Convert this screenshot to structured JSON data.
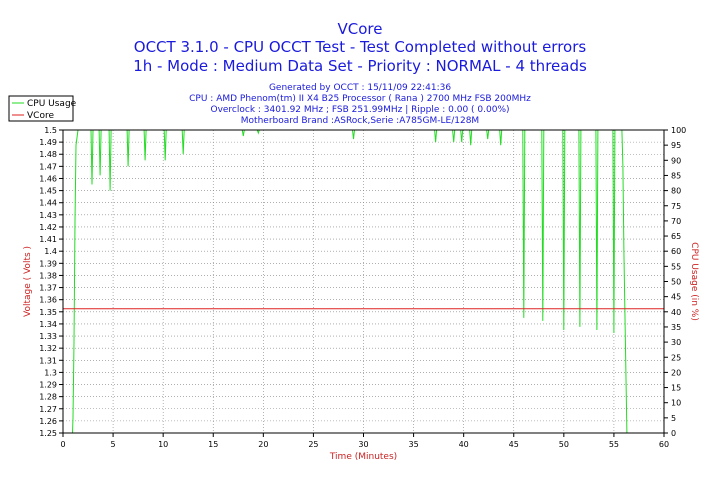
{
  "chart_data": {
    "type": "line",
    "title": "VCore",
    "subtitle_lines": [
      "OCCT 3.1.0 - CPU OCCT Test - Test Completed without errors",
      "1h - Mode : Medium Data Set - Priority : NORMAL - 4 threads"
    ],
    "info_lines": [
      "Generated by OCCT : 15/11/09 22:41:36",
      "CPU : AMD Phenom(tm) II X4 B25 Processor ( Rana ) 2700 MHz FSB 200MHz",
      "Overclock : 3401.92 MHz ; FSB 251.99MHz | Ripple : 0.00 ( 0.00%)",
      "Motherboard Brand :ASRock,Serie :A785GM-LE/128M"
    ],
    "xlabel": "Time (Minutes)",
    "ylabel": "Voltage ( Volts )",
    "y2label": "CPU Usage (in %)",
    "xlim": [
      0,
      60
    ],
    "ylim": [
      1.25,
      1.5
    ],
    "y2lim": [
      0,
      100
    ],
    "x_ticks": [
      0,
      5,
      10,
      15,
      20,
      25,
      30,
      35,
      40,
      45,
      50,
      55,
      60
    ],
    "y_ticks": [
      1.25,
      1.26,
      1.27,
      1.28,
      1.29,
      1.3,
      1.31,
      1.32,
      1.33,
      1.34,
      1.35,
      1.36,
      1.37,
      1.38,
      1.39,
      1.4,
      1.41,
      1.42,
      1.43,
      1.44,
      1.45,
      1.46,
      1.47,
      1.48,
      1.49,
      1.5
    ],
    "y2_ticks": [
      0,
      5,
      10,
      15,
      20,
      25,
      30,
      35,
      40,
      45,
      50,
      55,
      60,
      65,
      70,
      75,
      80,
      85,
      90,
      95,
      100
    ],
    "grid": true,
    "legend_position": "top-left outside",
    "series": [
      {
        "name": "CPU Usage",
        "color": "#22dd22",
        "axis": "right",
        "x": [
          0.95,
          1.0,
          1.1,
          1.2,
          1.3,
          1.5,
          2.0,
          2.8,
          2.9,
          3.0,
          3.6,
          3.7,
          3.8,
          4.6,
          4.7,
          4.8,
          6.4,
          6.5,
          6.6,
          8.1,
          8.2,
          8.3,
          10.1,
          10.2,
          10.3,
          11.9,
          12.0,
          12.1,
          17.9,
          18.0,
          18.1,
          19.4,
          19.5,
          19.6,
          28.9,
          29.0,
          29.1,
          37.1,
          37.2,
          37.3,
          38.9,
          39.0,
          39.1,
          39.7,
          39.8,
          39.9,
          40.6,
          40.7,
          40.8,
          42.3,
          42.4,
          42.5,
          43.6,
          43.7,
          43.8,
          45.9,
          46.0,
          46.1,
          47.8,
          47.9,
          48.0,
          49.9,
          50.0,
          50.1,
          51.5,
          51.6,
          51.7,
          53.2,
          53.3,
          53.4,
          54.9,
          55.0,
          55.1,
          55.8,
          55.9,
          56.0,
          56.2,
          56.3,
          56.4
        ],
        "values": [
          0,
          5,
          30,
          70,
          95,
          100,
          100,
          100,
          82,
          100,
          100,
          85,
          100,
          100,
          80,
          100,
          100,
          88,
          100,
          100,
          90,
          100,
          100,
          90,
          100,
          100,
          92,
          100,
          100,
          98,
          100,
          100,
          99,
          100,
          100,
          97,
          100,
          100,
          96,
          100,
          100,
          96,
          100,
          100,
          96,
          100,
          100,
          95,
          100,
          100,
          97,
          100,
          100,
          95,
          100,
          100,
          38,
          100,
          100,
          37,
          100,
          100,
          34,
          100,
          100,
          35,
          100,
          100,
          34,
          100,
          100,
          33,
          100,
          100,
          88,
          60,
          20,
          0,
          0
        ]
      },
      {
        "name": "VCore",
        "color": "#dd2222",
        "axis": "left",
        "x": [
          0,
          60
        ],
        "values": [
          1.3525,
          1.3525
        ]
      }
    ]
  }
}
